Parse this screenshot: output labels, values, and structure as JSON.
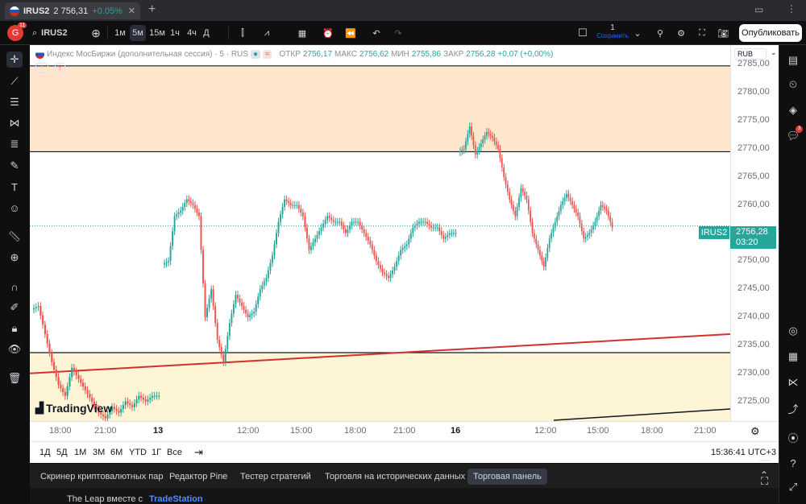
{
  "browser": {
    "tab_title": "IRUS2",
    "tab_price": "2 756,31",
    "tab_change": "+0.05%",
    "new_tab_icon": "plus-icon"
  },
  "toolbar": {
    "avatar_letter": "G",
    "avatar_badge": "11",
    "symbol": "IRUS2",
    "intervals": [
      "1м",
      "5м",
      "15м",
      "1ч",
      "4ч",
      "Д"
    ],
    "selected_interval": "5м",
    "layout_count": "1",
    "save_label": "Сохранить",
    "publish_label": "Опубликовать"
  },
  "chart": {
    "title": "Индекс МосБиржи (дополнительная сессия) · 5 · RUS",
    "ohlc": {
      "open_label": "ОТКР",
      "open": "2756,17",
      "high_label": "МАКС",
      "high": "2756,62",
      "low_label": "МИН",
      "low": "2755,86",
      "close_label": "ЗАКР",
      "close": "2756,28",
      "change": "+0,07 (+0,00%)"
    },
    "currency": "RUB",
    "symbol_label": "IRUS2",
    "last_price": "2756,28",
    "countdown": "03:20",
    "watermark": "TradingView",
    "colors": {
      "up": "#26a69a",
      "down": "#ef5350",
      "zone_top": "#fde6cc",
      "zone_bottom": "#fdf5d6",
      "trendline": "#d32f2f"
    },
    "price_axis": [
      "2785,00",
      "2780,00",
      "2775,00",
      "2770,00",
      "2765,00",
      "2760,00",
      "2755,00",
      "2750,00",
      "2745,00",
      "2740,00",
      "2735,00",
      "2730,00",
      "2725,00"
    ],
    "time_axis": [
      "18:00",
      "21:00",
      "13",
      "12:00",
      "15:00",
      "18:00",
      "21:00",
      "16",
      "12:00",
      "15:00",
      "18:00",
      "21:00"
    ]
  },
  "range_bar": {
    "ranges": [
      "1Д",
      "5Д",
      "1М",
      "3М",
      "6М",
      "YTD",
      "1Г",
      "Все"
    ],
    "clock": "15:36:41 UTC+3"
  },
  "bottom_panel": {
    "tabs": [
      "Скринер криптовалютных пар",
      "Редактор Pine",
      "Тестер стратегий",
      "Торговля на исторических данных",
      "Торговая панель"
    ],
    "selected_tab": "Торговая панель",
    "promo": "The Leap вместе с",
    "promo_brand": "TradeStation"
  },
  "chart_data": {
    "type": "candlestick",
    "title": "Индекс МосБиржи (дополнительная сессия) · 5 · RUS",
    "ylim": [
      2721.5,
      2788.5
    ],
    "zones": [
      {
        "from": 2769.5,
        "to": 2784.8
      },
      {
        "from": 2721.5,
        "to": 2733.7
      }
    ],
    "horizontal_levels": [
      2784.8,
      2769.5,
      2733.7
    ],
    "trendlines": [
      {
        "from": 2730.0,
        "to": 2737.0,
        "color": "#d32f2f"
      }
    ],
    "close_path": [
      2742,
      2737,
      2732,
      2728,
      2726,
      2731,
      2729,
      2727,
      2725,
      2723,
      2722,
      2724,
      2723,
      2725,
      2724,
      2726,
      2725,
      2726,
      2726,
      2750,
      2758,
      2759,
      2761,
      2760,
      2758,
      2740,
      2745,
      2736,
      2732,
      2739,
      2744,
      2742,
      2740,
      2741,
      2745,
      2747,
      2751,
      2757,
      2761,
      2760,
      2760,
      2758,
      2752,
      2754,
      2756,
      2758,
      2757,
      2757,
      2755,
      2757,
      2757,
      2755,
      2753,
      2750,
      2748,
      2747,
      2749,
      2752,
      2753,
      2756,
      2757,
      2757,
      2756,
      2756,
      2754,
      2755,
      2755,
      2770,
      2774,
      2769,
      2771,
      2773,
      2772,
      2770,
      2765,
      2761,
      2758,
      2763,
      2761,
      2755,
      2752,
      2749,
      2754,
      2757,
      2760,
      2762,
      2760,
      2758,
      2754,
      2755,
      2757,
      2760,
      2759,
      2756
    ]
  }
}
